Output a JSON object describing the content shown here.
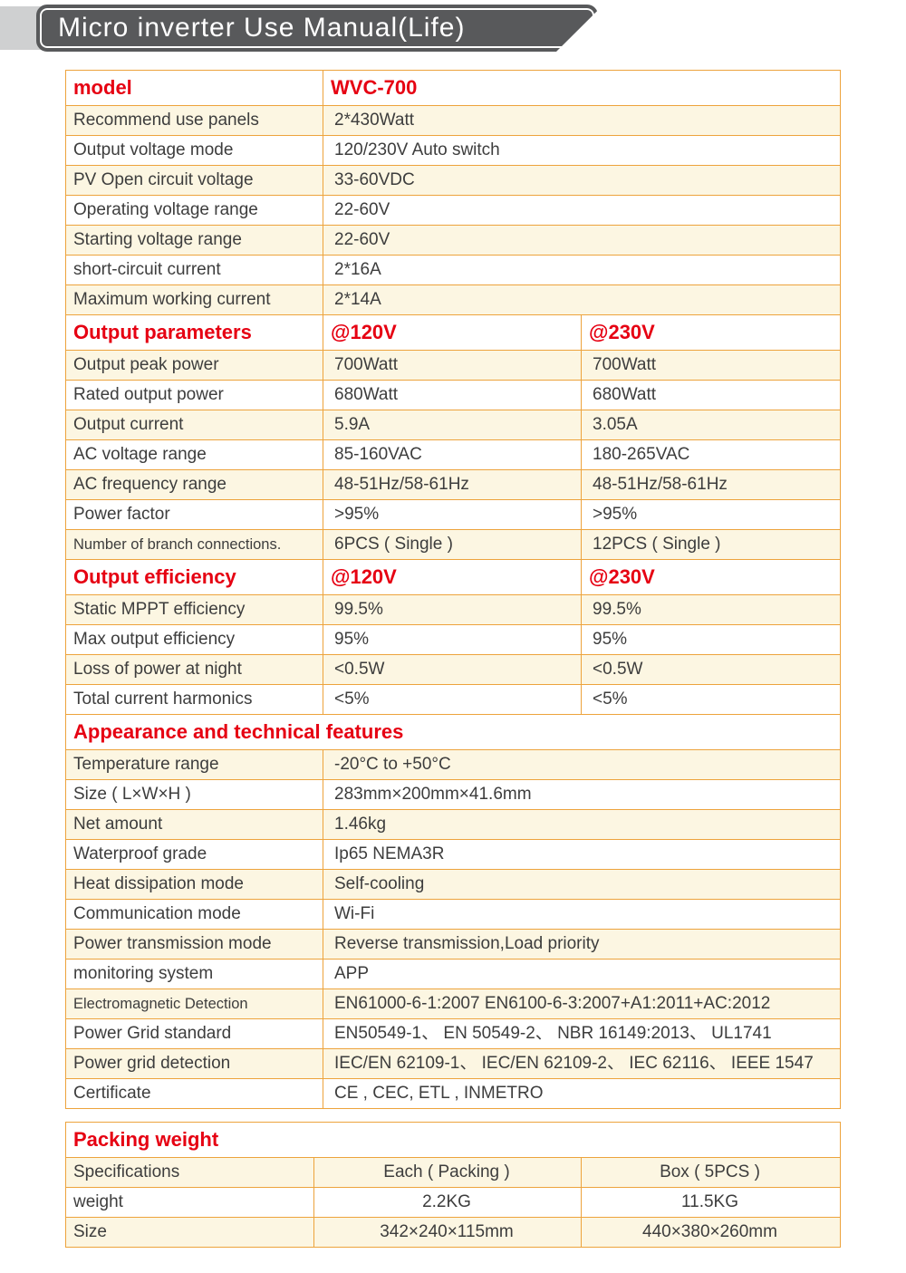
{
  "header": {
    "title": "Micro inverter Use Manual(Life)"
  },
  "colors": {
    "accent_red": "#e60012",
    "border_orange": "#eda33c",
    "row_cream": "#fcf6e2",
    "banner_gray": "#58595b"
  },
  "sections": [
    {
      "name": "model",
      "layout": "two",
      "header": [
        "model",
        "WVC-700"
      ],
      "rows": [
        [
          "Recommend use panels",
          "2*430Watt"
        ],
        [
          "Output voltage mode",
          "120/230V Auto switch"
        ],
        [
          "PV Open circuit voltage",
          "33-60VDC"
        ],
        [
          "Operating voltage range",
          "22-60V"
        ],
        [
          "Starting voltage range",
          "22-60V"
        ],
        [
          "short-circuit current",
          "2*16A"
        ],
        [
          "Maximum working current",
          "2*14A"
        ]
      ]
    },
    {
      "name": "output-parameters",
      "layout": "three",
      "header": [
        "Output parameters",
        "@120V",
        "@230V"
      ],
      "rows": [
        [
          "Output peak power",
          "700Watt",
          "700Watt"
        ],
        [
          "Rated output power",
          "680Watt",
          "680Watt"
        ],
        [
          "Output current",
          "5.9A",
          "3.05A"
        ],
        [
          "AC voltage range",
          "85-160VAC",
          "180-265VAC"
        ],
        [
          "AC frequency range",
          "48-51Hz/58-61Hz",
          "48-51Hz/58-61Hz"
        ],
        [
          "Power factor",
          ">95%",
          ">95%"
        ],
        [
          "Number of branch connections.",
          "6PCS ( Single )",
          "12PCS ( Single )"
        ]
      ]
    },
    {
      "name": "output-efficiency",
      "layout": "three",
      "header": [
        "Output efficiency",
        "@120V",
        "@230V"
      ],
      "rows": [
        [
          "Static MPPT efficiency",
          "99.5%",
          "99.5%"
        ],
        [
          "Max output efficiency",
          "95%",
          "95%"
        ],
        [
          "Loss of power at night",
          "<0.5W",
          "<0.5W"
        ],
        [
          "Total current harmonics",
          "<5%",
          "<5%"
        ]
      ]
    },
    {
      "name": "appearance",
      "layout": "two",
      "header": [
        "Appearance and technical features"
      ],
      "rows": [
        [
          "Temperature range",
          "-20°C to +50°C"
        ],
        [
          "Size ( L×W×H )",
          "283mm×200mm×41.6mm"
        ],
        [
          "Net amount",
          "1.46kg"
        ],
        [
          "Waterproof grade",
          "Ip65 NEMA3R"
        ],
        [
          "Heat dissipation mode",
          "Self-cooling"
        ],
        [
          "Communication mode",
          "Wi-Fi"
        ],
        [
          "Power transmission mode",
          "Reverse transmission,Load priority"
        ],
        [
          "monitoring system",
          "APP"
        ],
        [
          "Electromagnetic Detection",
          "EN61000-6-1:2007 EN6100-6-3:2007+A1:2011+AC:2012"
        ],
        [
          "Power Grid standard",
          "EN50549-1、 EN 50549-2、 NBR 16149:2013、 UL1741"
        ],
        [
          "Power grid detection",
          "IEC/EN 62109-1、 IEC/EN 62109-2、 IEC 62116、 IEEE 1547"
        ],
        [
          "Certificate",
          "CE , CEC, ETL , INMETRO"
        ]
      ]
    },
    {
      "name": "packing",
      "layout": "packing",
      "header": [
        "Packing weight"
      ],
      "rows": [
        [
          "Specifications",
          "Each ( Packing )",
          "Box ( 5PCS )"
        ],
        [
          "weight",
          "2.2KG",
          "11.5KG"
        ],
        [
          "Size",
          "342×240×115mm",
          "440×380×260mm"
        ]
      ]
    }
  ]
}
